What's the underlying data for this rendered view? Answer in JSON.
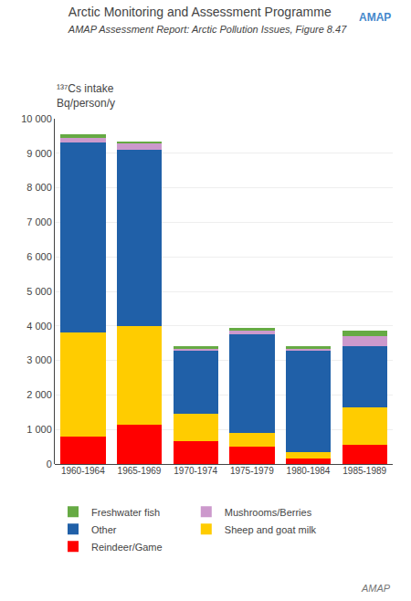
{
  "chart_data": {
    "type": "bar",
    "stacked": true,
    "title": "Arctic Monitoring and Assessment Programme",
    "subtitle": "AMAP Assessment Report: Arctic Pollution Issues, Figure 8.47",
    "ylabel": "¹³⁷Cs intake\nBq/person/y",
    "annotations": [
      "AMAP",
      "AMAP"
    ],
    "categories": [
      "1960-1964",
      "1965-1969",
      "1970-1974",
      "1975-1979",
      "1980-1984",
      "1985-1989"
    ],
    "series": [
      {
        "name": "Reindeer/Game",
        "color": "#ff0000",
        "values": [
          800,
          1150,
          650,
          500,
          150,
          550
        ]
      },
      {
        "name": "Sheep and goat milk",
        "color": "#ffcc00",
        "values": [
          3000,
          2850,
          800,
          400,
          200,
          1100
        ]
      },
      {
        "name": "Other",
        "color": "#2060a8",
        "values": [
          5500,
          5100,
          1850,
          2850,
          2950,
          1750
        ]
      },
      {
        "name": "Mushrooms/Berries",
        "color": "#cc99cc",
        "values": [
          150,
          200,
          50,
          100,
          50,
          300
        ]
      },
      {
        "name": "Freshwater fish",
        "color": "#66aa44",
        "values": [
          100,
          50,
          50,
          100,
          50,
          150
        ]
      }
    ],
    "ylim": [
      0,
      10000
    ],
    "yticks": [
      0,
      {
        "value": 1000,
        "label": "1 000"
      },
      {
        "value": 2000,
        "label": "2 000"
      },
      {
        "value": 3000,
        "label": "3 000"
      },
      {
        "value": 4000,
        "label": "4 000"
      },
      {
        "value": 5000,
        "label": "5 000"
      },
      {
        "value": 6000,
        "label": "6 000"
      },
      {
        "value": 7000,
        "label": "7 000"
      },
      {
        "value": 8000,
        "label": "8 000"
      },
      {
        "value": 9000,
        "label": "9 000"
      },
      {
        "value": 10000,
        "label": "10 000"
      }
    ],
    "grid": true,
    "legend": "bottom"
  }
}
